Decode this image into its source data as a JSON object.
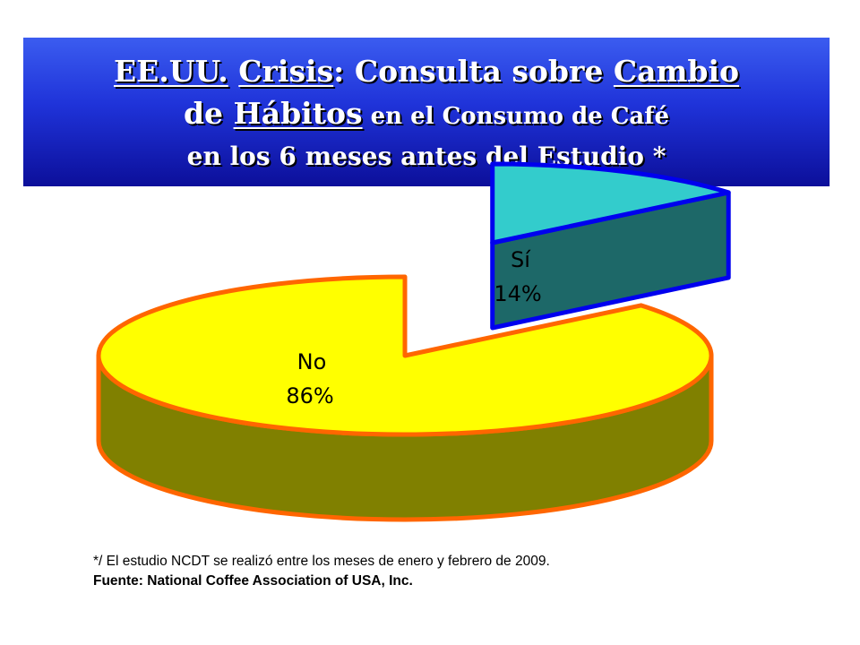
{
  "title": {
    "line1": {
      "p1": "EE.UU.",
      "p2": " ",
      "p3": "Crisis",
      "p4": ": Consulta sobre ",
      "p5": "Cambio"
    },
    "line2": {
      "p1": "de ",
      "p2": "Hábitos",
      "p3": " en el Consumo de Café"
    },
    "line3": "en los 6 meses antes del Estudio *"
  },
  "chart_data": {
    "type": "pie",
    "style": "3d-exploded",
    "categories": [
      "Sí",
      "No"
    ],
    "values": [
      14,
      86
    ],
    "unit": "%",
    "labels": [
      {
        "name": "Sí",
        "value": "14%"
      },
      {
        "name": "No",
        "value": "86%"
      }
    ],
    "colors": {
      "si_top": "#33cccc",
      "si_side": "#1d6868",
      "si_edge": "#0000ee",
      "no_top": "#ffff00",
      "no_side": "#808000",
      "no_edge": "#ff6600"
    },
    "legend": "none",
    "grid": false
  },
  "footnote": {
    "note": "*/ El estudio NCDT se realizó entre los meses de enero y febrero de 2009.",
    "source": "Fuente: National Coffee Association of USA, Inc."
  }
}
